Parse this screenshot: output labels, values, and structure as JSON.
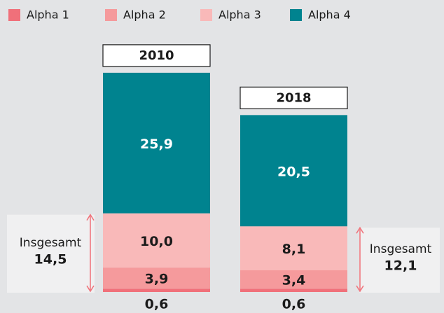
{
  "chart_data": {
    "type": "stacked_bar",
    "categories": [
      "2010",
      "2018"
    ],
    "series": [
      {
        "name": "Alpha 1",
        "color": "#f0707a",
        "values": [
          0.6,
          0.6
        ],
        "value_labels": [
          "0,6",
          "0,6"
        ]
      },
      {
        "name": "Alpha 2",
        "color": "#f59a9c",
        "values": [
          3.9,
          3.4
        ],
        "value_labels": [
          "3,9",
          "3,4"
        ]
      },
      {
        "name": "Alpha 3",
        "color": "#f9b9b9",
        "values": [
          10.0,
          8.1
        ],
        "value_labels": [
          "10,0",
          "8,1"
        ]
      },
      {
        "name": "Alpha 4",
        "color": "#00838f",
        "values": [
          25.9,
          20.5
        ],
        "value_labels": [
          "25,9",
          "20,5"
        ]
      }
    ],
    "annotations": [
      {
        "text": "Insgesamt",
        "value": 14.5,
        "label": "14,5",
        "color": "#f07078"
      },
      {
        "text": "Insgesamt",
        "value": 12.1,
        "label": "12,1",
        "color": "#f07078"
      }
    ]
  }
}
